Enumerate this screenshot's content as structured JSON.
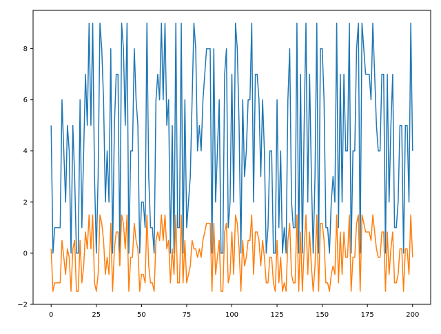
{
  "chart_data": {
    "type": "line",
    "title": "",
    "xlabel": "",
    "ylabel": "",
    "xlim": [
      -10,
      210
    ],
    "ylim": [
      -2,
      9.5
    ],
    "x_ticks": [
      0,
      25,
      50,
      75,
      100,
      125,
      150,
      175,
      200
    ],
    "y_ticks": [
      -2,
      0,
      2,
      4,
      6,
      8
    ],
    "grid": false,
    "legend": "none",
    "series": [
      {
        "color": "#1f77b4",
        "x_start": 0,
        "x_step": 1,
        "values": [
          5,
          0,
          1,
          1,
          1,
          1,
          6,
          4,
          2,
          5,
          4,
          0,
          5,
          3,
          0,
          0,
          6,
          1,
          4,
          7,
          5,
          9,
          5,
          9,
          3,
          0,
          3,
          9,
          8,
          6,
          2,
          4,
          2,
          8,
          0,
          5,
          7,
          7,
          0,
          9,
          8,
          5,
          9,
          0,
          4,
          4,
          8,
          6,
          5,
          0,
          2,
          2,
          1,
          9,
          3,
          1,
          1,
          0,
          6,
          7,
          6,
          9,
          6,
          9,
          5,
          6,
          0,
          5,
          0,
          9,
          1,
          1,
          9,
          0,
          6,
          1,
          2,
          3,
          6,
          9,
          8,
          4,
          5,
          4,
          6,
          7,
          8,
          8,
          8,
          0,
          8,
          2,
          4,
          6,
          0,
          0,
          7,
          8,
          1,
          2,
          7,
          2,
          9,
          8,
          5,
          0,
          6,
          3,
          4,
          6,
          6,
          9,
          2,
          7,
          7,
          6,
          3,
          6,
          4,
          0,
          1,
          4,
          4,
          0,
          0,
          6,
          1,
          4,
          0,
          1,
          0,
          6,
          8,
          2,
          1,
          1,
          9,
          0,
          7,
          0,
          5,
          9,
          2,
          7,
          3,
          0,
          3,
          9,
          0,
          8,
          8,
          6,
          1,
          1,
          0,
          2,
          3,
          2,
          9,
          1,
          7,
          2,
          7,
          4,
          4,
          9,
          0,
          4,
          4,
          8,
          9,
          0,
          9,
          8,
          7,
          7,
          7,
          6,
          9,
          7,
          5,
          4,
          4,
          7,
          7,
          0,
          7,
          2,
          5,
          7,
          1,
          1,
          2,
          5,
          5,
          0,
          5,
          5,
          2,
          9,
          4
        ]
      },
      {
        "color": "#ff7f0e",
        "x_start": 0,
        "x_step": 1,
        "values": [
          0.17,
          -1.49,
          -1.16,
          -1.16,
          -1.16,
          -1.16,
          0.5,
          -0.16,
          -0.83,
          0.17,
          -0.16,
          -1.49,
          0.17,
          0.5,
          -1.49,
          -1.49,
          0.5,
          -1.16,
          -0.5,
          0.83,
          0.17,
          1.5,
          0.17,
          1.5,
          -1.16,
          -1.49,
          -0.83,
          1.5,
          1.17,
          0.5,
          -0.83,
          -0.16,
          -0.83,
          1.17,
          -1.49,
          0.17,
          0.83,
          0.83,
          -0.5,
          1.5,
          1.17,
          0.17,
          1.5,
          -1.49,
          -0.16,
          -0.16,
          1.17,
          0.5,
          0.17,
          -1.49,
          -0.83,
          -0.83,
          -1.16,
          1.5,
          -0.5,
          -1.16,
          -1.16,
          -1.49,
          0.5,
          0.83,
          0.5,
          1.5,
          0.5,
          1.5,
          0.17,
          0.5,
          -1.16,
          0.17,
          -0.83,
          1.5,
          -1.16,
          -1.16,
          1.5,
          -1.16,
          0.5,
          -1.16,
          -0.83,
          -0.5,
          0.5,
          0.17,
          0.17,
          -0.16,
          0.17,
          -0.16,
          0.5,
          0.83,
          1.17,
          1.17,
          1.17,
          -1.49,
          1.17,
          -0.83,
          -0.16,
          0.5,
          -1.49,
          -1.49,
          0.83,
          1.17,
          -1.16,
          -0.83,
          0.83,
          -0.83,
          1.5,
          1.17,
          0.17,
          -1.49,
          0.5,
          -0.5,
          -0.16,
          0.5,
          0.5,
          1.5,
          -0.83,
          0.83,
          0.83,
          0.5,
          -0.5,
          0.5,
          -0.16,
          -1.16,
          -1.16,
          -0.16,
          -0.16,
          -1.16,
          -1.49,
          0.5,
          -1.16,
          -0.16,
          -1.49,
          -1.16,
          -1.49,
          0.5,
          1.17,
          -0.83,
          -1.16,
          -1.16,
          1.5,
          -1.49,
          0.83,
          -1.49,
          0.17,
          1.5,
          -0.83,
          0.83,
          -0.5,
          -1.49,
          -0.5,
          1.5,
          -1.49,
          1.17,
          1.17,
          0.5,
          -1.16,
          -1.16,
          -1.49,
          -0.83,
          -0.5,
          -0.83,
          1.5,
          -1.16,
          0.83,
          -0.83,
          0.83,
          -0.16,
          -0.16,
          1.5,
          -1.49,
          -0.16,
          -0.16,
          1.17,
          1.5,
          -1.49,
          1.5,
          1.17,
          0.83,
          0.83,
          0.83,
          0.5,
          1.5,
          0.83,
          0.17,
          -0.16,
          -0.16,
          0.83,
          0.83,
          -1.49,
          0.83,
          -0.83,
          0.17,
          0.83,
          -1.16,
          -1.16,
          -0.83,
          0.17,
          0.17,
          -1.49,
          0.17,
          0.17,
          -0.83,
          1.5,
          -0.16
        ]
      }
    ]
  }
}
